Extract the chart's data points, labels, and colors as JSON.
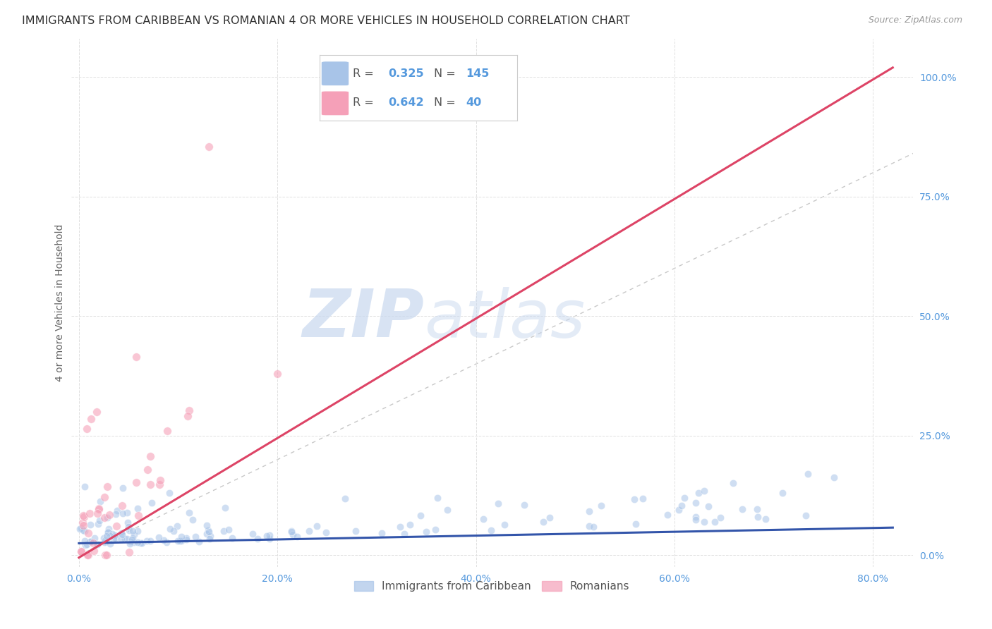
{
  "title": "IMMIGRANTS FROM CARIBBEAN VS ROMANIAN 4 OR MORE VEHICLES IN HOUSEHOLD CORRELATION CHART",
  "source": "Source: ZipAtlas.com",
  "xlabel_tick_vals": [
    0.0,
    0.2,
    0.4,
    0.6,
    0.8
  ],
  "ylabel_tick_vals": [
    0.0,
    0.25,
    0.5,
    0.75,
    1.0
  ],
  "ylabel_label": "4 or more Vehicles in Household",
  "xlim": [
    -0.008,
    0.84
  ],
  "ylim": [
    -0.025,
    1.08
  ],
  "watermark_zip": "ZIP",
  "watermark_atlas": "atlas",
  "legend_entries": [
    {
      "label": "Immigrants from Caribbean",
      "R": 0.325,
      "N": 145,
      "color": "#a8c4e8"
    },
    {
      "label": "Romanians",
      "R": 0.642,
      "N": 40,
      "color": "#f5b8c8"
    }
  ],
  "caribbean_color": "#a8c4e8",
  "romanian_color": "#f5a0b8",
  "trendline_caribbean_color": "#3355aa",
  "trendline_romanian_color": "#dd4466",
  "diagonal_color": "#c8c8c8",
  "background_color": "#ffffff",
  "grid_color": "#e0e0e0",
  "title_fontsize": 11.5,
  "source_fontsize": 9,
  "tick_fontsize": 10,
  "ylabel_fontsize": 10,
  "tick_color": "#5599dd",
  "label_color": "#666666"
}
